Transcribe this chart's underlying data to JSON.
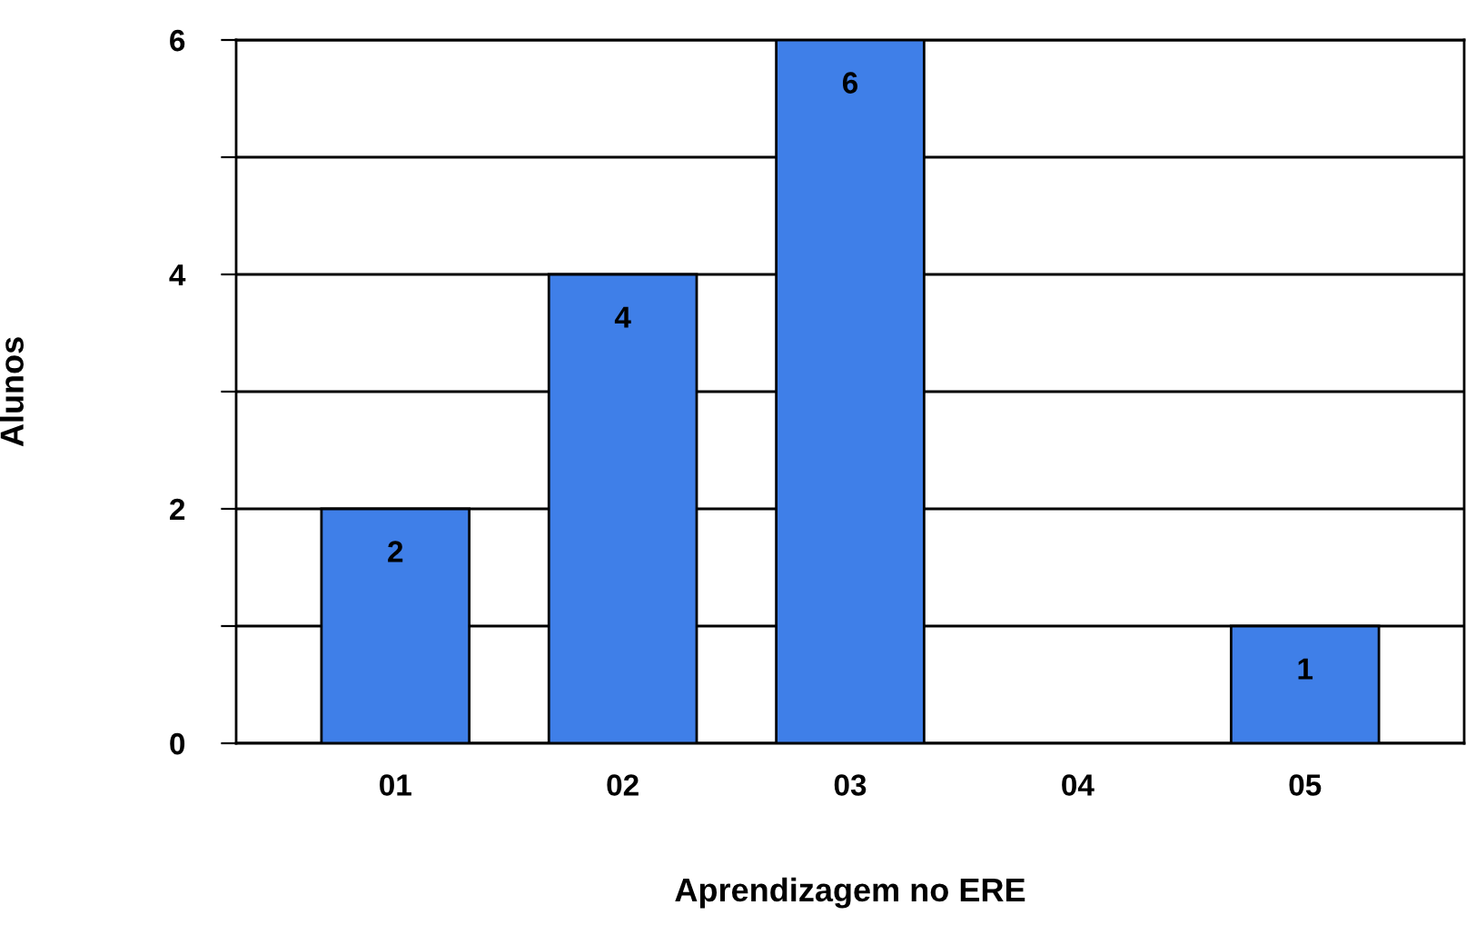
{
  "chart_data": {
    "type": "bar",
    "xlabel": "Aprendizagem no ERE",
    "ylabel": "Alunos",
    "categories": [
      "01",
      "02",
      "03",
      "04",
      "05"
    ],
    "values": [
      2,
      4,
      6,
      0,
      1
    ],
    "value_labels": [
      "2",
      "4",
      "6",
      null,
      "1"
    ],
    "color": "#3f7fe8",
    "ylim": [
      0,
      6
    ],
    "yticks": [
      0,
      {
        "value": 1,
        "label": null
      },
      2,
      {
        "value": 3,
        "label": null
      },
      4,
      {
        "value": 5,
        "label": null
      },
      6
    ],
    "grid": "y"
  }
}
